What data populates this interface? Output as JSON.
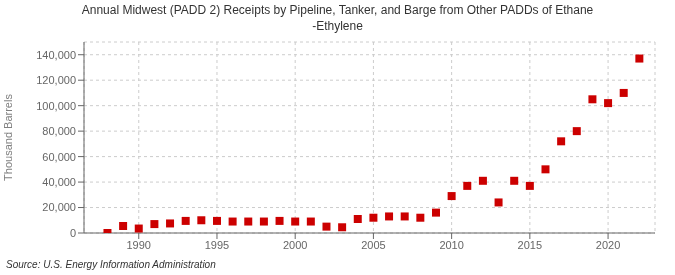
{
  "chart_data": {
    "type": "scatter",
    "title": "Annual Midwest (PADD 2) Receipts by Pipeline, Tanker, and Barge from Other PADDs of Ethane\n-Ethylene",
    "ylabel": "Thousand Barrels",
    "annotations": [
      "Source: U.S. Energy Information Administration"
    ],
    "x": [
      1988,
      1989,
      1990,
      1991,
      1992,
      1993,
      1994,
      1995,
      1996,
      1997,
      1998,
      1999,
      2000,
      2001,
      2002,
      2003,
      2004,
      2005,
      2006,
      2007,
      2008,
      2009,
      2010,
      2011,
      2012,
      2013,
      2014,
      2015,
      2016,
      2017,
      2018,
      2019,
      2020,
      2021,
      2022
    ],
    "values": [
      0,
      5500,
      3500,
      7000,
      7500,
      9500,
      10000,
      9500,
      9000,
      9000,
      9000,
      9500,
      9000,
      9000,
      5000,
      4500,
      11000,
      12000,
      13000,
      13000,
      12000,
      16000,
      29000,
      37000,
      41000,
      24000,
      41000,
      37000,
      50000,
      72000,
      80000,
      105000,
      102000,
      110000,
      137000
    ],
    "color": "#cc0000",
    "marker": "square",
    "xlim": [
      1986.5,
      2023
    ],
    "xticks": [
      1990,
      1995,
      2000,
      2005,
      2010,
      2015,
      2020
    ],
    "ylim": [
      0,
      150000
    ],
    "yticks": [
      0,
      {
        "value": 20000,
        "label": "20,000"
      },
      {
        "value": 40000,
        "label": "40,000"
      },
      {
        "value": 60000,
        "label": "60,000"
      },
      {
        "value": 80000,
        "label": "80,000"
      },
      {
        "value": 100000,
        "label": "100,000"
      },
      {
        "value": 120000,
        "label": "120,000"
      },
      {
        "value": 140000,
        "label": "140,000"
      }
    ],
    "grid": true
  }
}
